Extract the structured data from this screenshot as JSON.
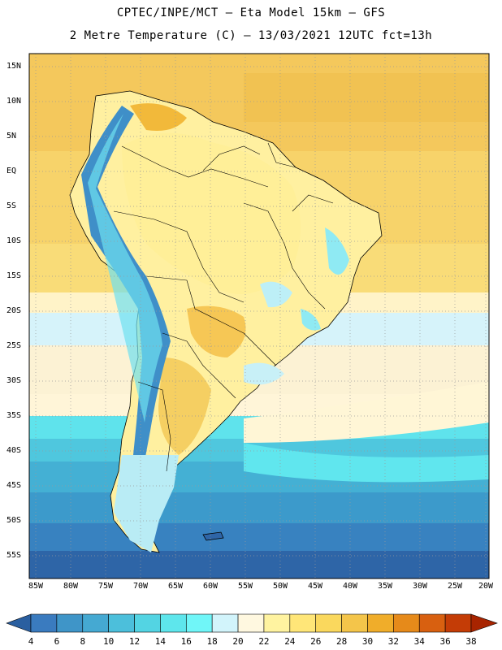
{
  "header": {
    "line1": "CPTEC/INPE/MCT –  Eta Model 15km – GFS",
    "line2": "2 Metre Temperature (C) – 13/03/2021 12UTC fct=13h"
  },
  "map": {
    "lat_labels": [
      "15N",
      "10N",
      "5N",
      "EQ",
      "5S",
      "10S",
      "15S",
      "20S",
      "25S",
      "30S",
      "35S",
      "40S",
      "45S",
      "50S",
      "55S"
    ],
    "lon_labels": [
      "85W",
      "80W",
      "75W",
      "70W",
      "65W",
      "60W",
      "55W",
      "50W",
      "45W",
      "40W",
      "35W",
      "30W",
      "25W",
      "20W"
    ],
    "lat_range": [
      -58,
      16
    ],
    "lon_range": [
      -86,
      -20
    ],
    "grid": "dotted"
  },
  "colorbar": {
    "labels": [
      "4",
      "6",
      "8",
      "10",
      "12",
      "14",
      "16",
      "18",
      "20",
      "22",
      "24",
      "26",
      "28",
      "30",
      "32",
      "34",
      "36",
      "38"
    ],
    "colors": [
      "#2a5fa0",
      "#3a7bbf",
      "#3f95c8",
      "#45a9d2",
      "#4cbfdb",
      "#53d4e3",
      "#5ee6ec",
      "#70f6f8",
      "#d2f4fb",
      "#fff8e0",
      "#fff3a0",
      "#ffe678",
      "#fad85d",
      "#f4c54a",
      "#f0ad2a",
      "#e68a1a",
      "#d86010",
      "#c43c06",
      "#a82400"
    ]
  }
}
